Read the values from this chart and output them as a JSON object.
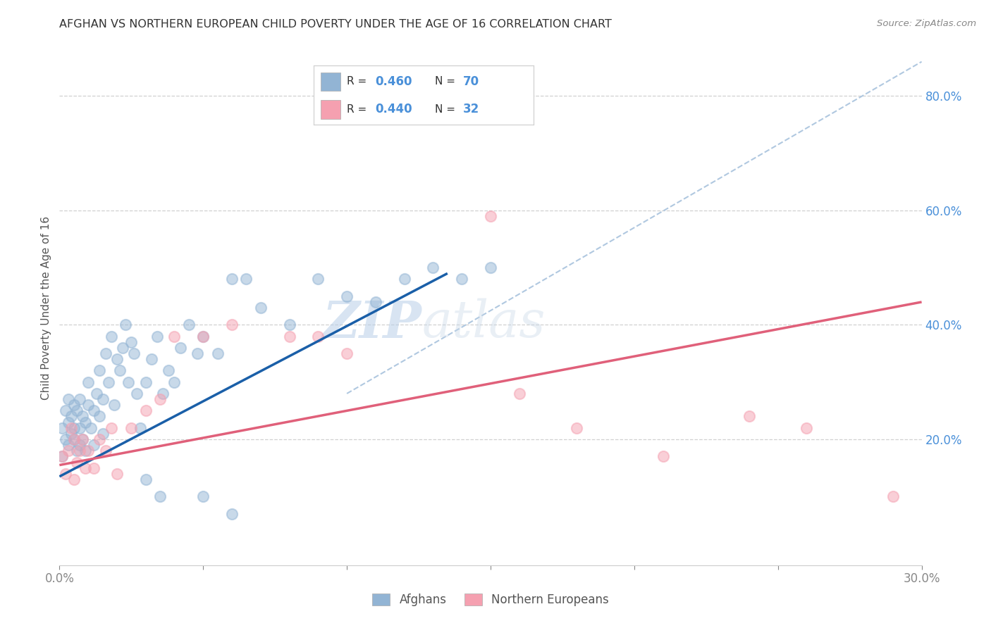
{
  "title": "AFGHAN VS NORTHERN EUROPEAN CHILD POVERTY UNDER THE AGE OF 16 CORRELATION CHART",
  "source": "Source: ZipAtlas.com",
  "ylabel": "Child Poverty Under the Age of 16",
  "xmin": 0.0,
  "xmax": 0.3,
  "ymin": -0.02,
  "ymax": 0.88,
  "xticks": [
    0.0,
    0.05,
    0.1,
    0.15,
    0.2,
    0.25,
    0.3
  ],
  "yticks_right": [
    0.2,
    0.4,
    0.6,
    0.8
  ],
  "ytick_labels_right": [
    "20.0%",
    "40.0%",
    "60.0%",
    "80.0%"
  ],
  "blue_color": "#92b4d4",
  "pink_color": "#f5a0b0",
  "line_blue": "#1a5fa8",
  "line_pink": "#e0607a",
  "diag_color": "#b0c8e0",
  "legend_label1": "Afghans",
  "legend_label2": "Northern Europeans",
  "afghans_x": [
    0.001,
    0.001,
    0.002,
    0.002,
    0.003,
    0.003,
    0.003,
    0.004,
    0.004,
    0.005,
    0.005,
    0.005,
    0.006,
    0.006,
    0.007,
    0.007,
    0.007,
    0.008,
    0.008,
    0.009,
    0.009,
    0.01,
    0.01,
    0.011,
    0.012,
    0.012,
    0.013,
    0.014,
    0.014,
    0.015,
    0.015,
    0.016,
    0.017,
    0.018,
    0.019,
    0.02,
    0.021,
    0.022,
    0.023,
    0.024,
    0.025,
    0.026,
    0.027,
    0.028,
    0.03,
    0.032,
    0.034,
    0.036,
    0.038,
    0.04,
    0.042,
    0.045,
    0.048,
    0.05,
    0.055,
    0.06,
    0.065,
    0.07,
    0.08,
    0.09,
    0.1,
    0.11,
    0.12,
    0.13,
    0.14,
    0.15,
    0.03,
    0.035,
    0.05,
    0.06
  ],
  "afghans_y": [
    0.17,
    0.22,
    0.2,
    0.25,
    0.19,
    0.23,
    0.27,
    0.21,
    0.24,
    0.2,
    0.26,
    0.22,
    0.18,
    0.25,
    0.22,
    0.19,
    0.27,
    0.24,
    0.2,
    0.23,
    0.18,
    0.26,
    0.3,
    0.22,
    0.25,
    0.19,
    0.28,
    0.24,
    0.32,
    0.21,
    0.27,
    0.35,
    0.3,
    0.38,
    0.26,
    0.34,
    0.32,
    0.36,
    0.4,
    0.3,
    0.37,
    0.35,
    0.28,
    0.22,
    0.3,
    0.34,
    0.38,
    0.28,
    0.32,
    0.3,
    0.36,
    0.4,
    0.35,
    0.38,
    0.35,
    0.48,
    0.48,
    0.43,
    0.4,
    0.48,
    0.45,
    0.44,
    0.48,
    0.5,
    0.48,
    0.5,
    0.13,
    0.1,
    0.1,
    0.07
  ],
  "northern_x": [
    0.001,
    0.002,
    0.003,
    0.004,
    0.005,
    0.005,
    0.006,
    0.007,
    0.008,
    0.009,
    0.01,
    0.012,
    0.014,
    0.016,
    0.018,
    0.02,
    0.025,
    0.03,
    0.035,
    0.04,
    0.05,
    0.06,
    0.08,
    0.09,
    0.1,
    0.15,
    0.16,
    0.18,
    0.21,
    0.24,
    0.26,
    0.29
  ],
  "northern_y": [
    0.17,
    0.14,
    0.18,
    0.22,
    0.2,
    0.13,
    0.16,
    0.18,
    0.2,
    0.15,
    0.18,
    0.15,
    0.2,
    0.18,
    0.22,
    0.14,
    0.22,
    0.25,
    0.27,
    0.38,
    0.38,
    0.4,
    0.38,
    0.38,
    0.35,
    0.59,
    0.28,
    0.22,
    0.17,
    0.24,
    0.22,
    0.1
  ],
  "blue_line_x": [
    0.0,
    0.135
  ],
  "blue_line_y": [
    0.135,
    0.49
  ],
  "pink_line_x": [
    0.0,
    0.3
  ],
  "pink_line_y": [
    0.155,
    0.44
  ],
  "diag_line_x": [
    0.1,
    0.3
  ],
  "diag_line_y": [
    0.28,
    0.86
  ],
  "watermark_zip": "ZIP",
  "watermark_atlas": "atlas",
  "bg_color": "#ffffff",
  "grid_color": "#d0d0d0",
  "tick_color": "#888888",
  "right_tick_color": "#4a90d9",
  "title_color": "#333333",
  "source_color": "#888888"
}
